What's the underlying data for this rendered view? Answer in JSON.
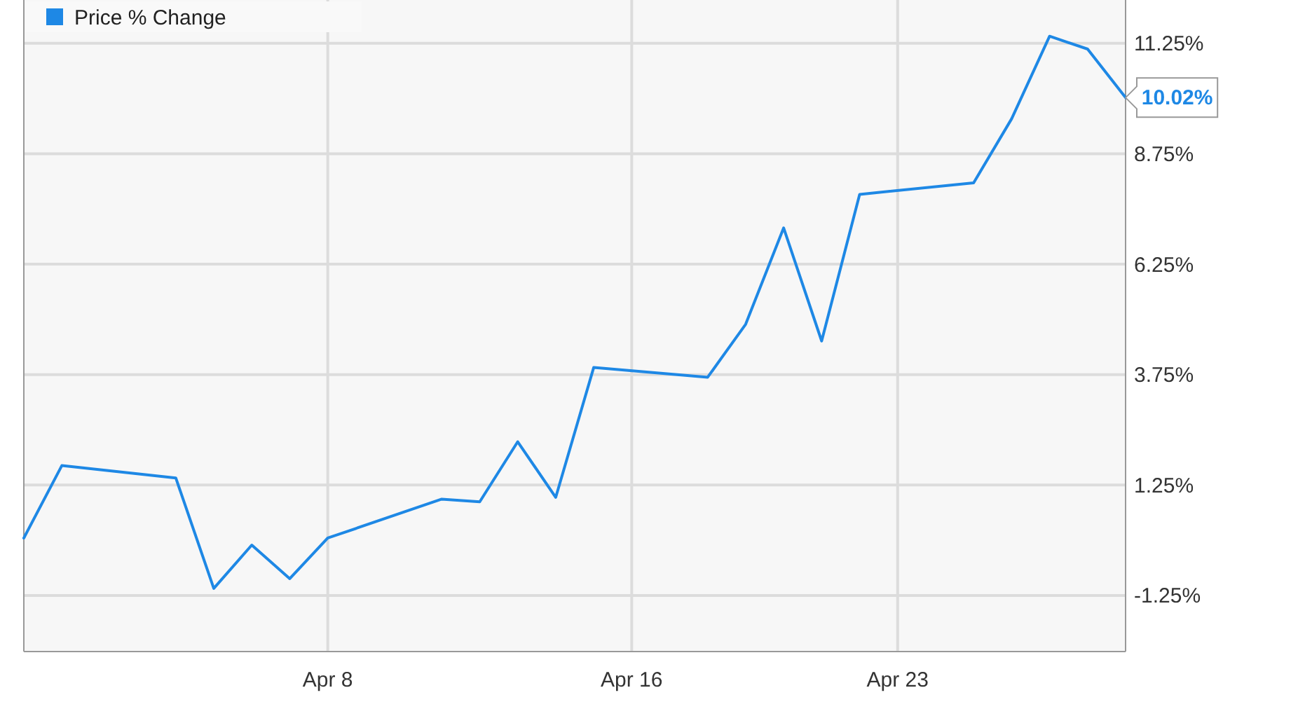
{
  "chart_data": {
    "type": "line",
    "x": [
      "--03-31",
      "--04-01",
      "--04-04",
      "--04-05",
      "--04-06",
      "--04-07",
      "--04-08",
      "--04-11",
      "--04-12",
      "--04-13",
      "--04-14",
      "--04-15",
      "--04-18",
      "--04-19",
      "--04-20",
      "--04-21",
      "--04-22",
      "--04-25",
      "--04-26",
      "--04-27",
      "--04-28",
      "--04-29"
    ],
    "series": [
      {
        "name": "Price % Change",
        "color": "#1e88e5",
        "values": [
          0.05,
          1.69,
          1.41,
          -1.09,
          -0.11,
          -0.87,
          0.05,
          0.93,
          0.87,
          2.23,
          0.97,
          3.91,
          3.69,
          4.89,
          7.07,
          4.51,
          7.83,
          8.09,
          9.54,
          11.41,
          11.12,
          10.02
        ],
        "value_labels": [
          null,
          null,
          null,
          null,
          null,
          null,
          null,
          null,
          null,
          null,
          null,
          null,
          null,
          null,
          null,
          null,
          null,
          null,
          null,
          null,
          null,
          "10.02%"
        ]
      }
    ],
    "xlim": [
      "--03-31",
      "--04-29"
    ],
    "ylim": [
      -2.52,
      12.23
    ],
    "xticks": [
      {
        "value": "--04-08",
        "label": "Apr 8"
      },
      {
        "value": "--04-16",
        "label": "Apr 16"
      },
      {
        "value": "--04-23",
        "label": "Apr 23"
      }
    ],
    "yticks": [
      {
        "value": -1.25,
        "label": "-1.25%"
      },
      {
        "value": 1.25,
        "label": "1.25%"
      },
      {
        "value": 3.75,
        "label": "3.75%"
      },
      {
        "value": 6.25,
        "label": "6.25%"
      },
      {
        "value": 8.75,
        "label": "8.75%"
      },
      {
        "value": 11.25,
        "label": "11.25%"
      }
    ],
    "grid": true,
    "legend": "top left",
    "marker": "none",
    "line_style": "solid"
  }
}
